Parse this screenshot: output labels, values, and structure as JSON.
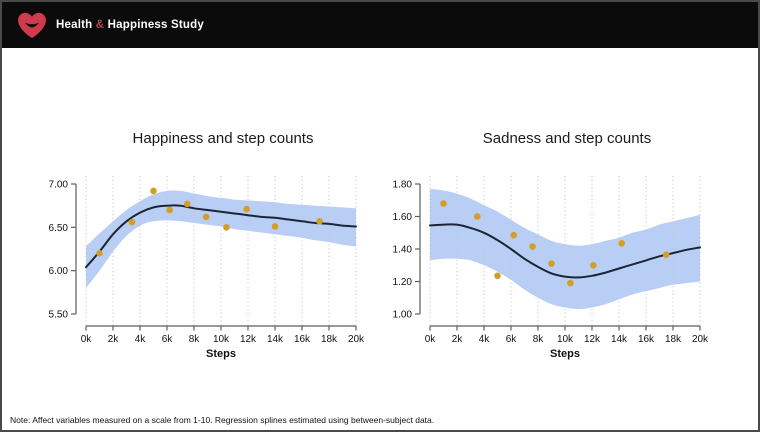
{
  "header": {
    "brand_pre": "Health ",
    "brand_amp": "&",
    "brand_post": " Happiness Study"
  },
  "note": "Note: Affect variables measured on a scale from 1-10. Regression splines estimated using between-subject data.",
  "colors": {
    "header_bg": "#0b0b0b",
    "heart_red": "#cf3a4d",
    "amp_red": "#b04350",
    "band_blue": "#b9cef5",
    "spline_navy": "#1c2537",
    "point_gold": "#d39e28",
    "grid_gray": "#c6c6c6",
    "axis_gray": "#5e5e5e",
    "title_black": "#1a1a1a"
  },
  "chart_data": [
    {
      "type": "scatter",
      "subtype": "scatter with regression spline and confidence band",
      "title": "Happiness and step counts",
      "xlabel": "Steps",
      "ylabel": "",
      "xlim": [
        0,
        20000
      ],
      "ylim": [
        5.5,
        7.0
      ],
      "grid": "vertical dotted only",
      "legend": "none",
      "x_tick_values": [
        0,
        2000,
        4000,
        6000,
        8000,
        10000,
        12000,
        14000,
        16000,
        18000,
        20000
      ],
      "x_tick_labels": [
        "0k",
        "2k",
        "4k",
        "6k",
        "8k",
        "10k",
        "12k",
        "14k",
        "16k",
        "18k",
        "20k"
      ],
      "y_tick_values": [
        7.0,
        6.5,
        6.0,
        5.5
      ],
      "y_tick_labels": [
        "7.00",
        "6.50",
        "6.00",
        "5.50"
      ],
      "points": [
        [
          1000,
          6.2
        ],
        [
          3400,
          6.56
        ],
        [
          5000,
          6.92
        ],
        [
          6200,
          6.7
        ],
        [
          7500,
          6.77
        ],
        [
          8900,
          6.62
        ],
        [
          10400,
          6.5
        ],
        [
          11900,
          6.71
        ],
        [
          14000,
          6.51
        ],
        [
          17300,
          6.57
        ]
      ],
      "line_x": [
        0,
        1000,
        2000,
        3000,
        4000,
        5000,
        6000,
        7000,
        8000,
        9000,
        10000,
        11000,
        12000,
        13000,
        14000,
        15000,
        16000,
        17000,
        18000,
        19000,
        20000
      ],
      "line_y": [
        6.04,
        6.22,
        6.42,
        6.57,
        6.67,
        6.73,
        6.75,
        6.75,
        6.72,
        6.7,
        6.68,
        6.66,
        6.64,
        6.62,
        6.61,
        6.59,
        6.57,
        6.55,
        6.54,
        6.52,
        6.51
      ],
      "band_upper": [
        6.28,
        6.43,
        6.57,
        6.7,
        6.8,
        6.88,
        6.92,
        6.92,
        6.89,
        6.86,
        6.84,
        6.82,
        6.81,
        6.8,
        6.79,
        6.77,
        6.76,
        6.75,
        6.74,
        6.73,
        6.72
      ],
      "band_lower": [
        5.8,
        6.0,
        6.22,
        6.4,
        6.52,
        6.57,
        6.58,
        6.57,
        6.55,
        6.53,
        6.51,
        6.48,
        6.46,
        6.44,
        6.42,
        6.4,
        6.38,
        6.35,
        6.33,
        6.3,
        6.28
      ]
    },
    {
      "type": "scatter",
      "subtype": "scatter with regression spline and confidence band",
      "title": "Sadness and step counts",
      "xlabel": "Steps",
      "ylabel": "",
      "xlim": [
        0,
        20000
      ],
      "ylim": [
        1.0,
        1.8
      ],
      "grid": "vertical dotted only",
      "legend": "none",
      "x_tick_values": [
        0,
        2000,
        4000,
        6000,
        8000,
        10000,
        12000,
        14000,
        16000,
        18000,
        20000
      ],
      "x_tick_labels": [
        "0k",
        "2k",
        "4k",
        "6k",
        "8k",
        "10k",
        "12k",
        "14k",
        "16k",
        "18k",
        "20k"
      ],
      "y_tick_values": [
        1.8,
        1.6,
        1.4,
        1.2,
        1.0
      ],
      "y_tick_labels": [
        "1.80",
        "1.60",
        "1.40",
        "1.20",
        "1.00"
      ],
      "points": [
        [
          1000,
          1.68
        ],
        [
          3500,
          1.6
        ],
        [
          5000,
          1.235
        ],
        [
          6200,
          1.485
        ],
        [
          7600,
          1.415
        ],
        [
          9000,
          1.31
        ],
        [
          10400,
          1.19
        ],
        [
          12100,
          1.3
        ],
        [
          14200,
          1.435
        ],
        [
          17500,
          1.365
        ]
      ],
      "line_x": [
        0,
        1000,
        2000,
        3000,
        4000,
        5000,
        6000,
        7000,
        8000,
        9000,
        10000,
        11000,
        12000,
        13000,
        14000,
        15000,
        16000,
        17000,
        18000,
        19000,
        20000
      ],
      "line_y": [
        1.545,
        1.55,
        1.55,
        1.53,
        1.5,
        1.455,
        1.4,
        1.34,
        1.29,
        1.25,
        1.23,
        1.225,
        1.235,
        1.255,
        1.28,
        1.305,
        1.33,
        1.355,
        1.375,
        1.395,
        1.41
      ],
      "band_upper": [
        1.77,
        1.76,
        1.74,
        1.71,
        1.67,
        1.63,
        1.58,
        1.53,
        1.49,
        1.45,
        1.43,
        1.42,
        1.43,
        1.45,
        1.47,
        1.5,
        1.52,
        1.55,
        1.57,
        1.59,
        1.61
      ],
      "band_lower": [
        1.33,
        1.34,
        1.34,
        1.33,
        1.3,
        1.26,
        1.21,
        1.15,
        1.1,
        1.06,
        1.04,
        1.03,
        1.04,
        1.06,
        1.09,
        1.12,
        1.14,
        1.16,
        1.18,
        1.19,
        1.2
      ]
    }
  ]
}
